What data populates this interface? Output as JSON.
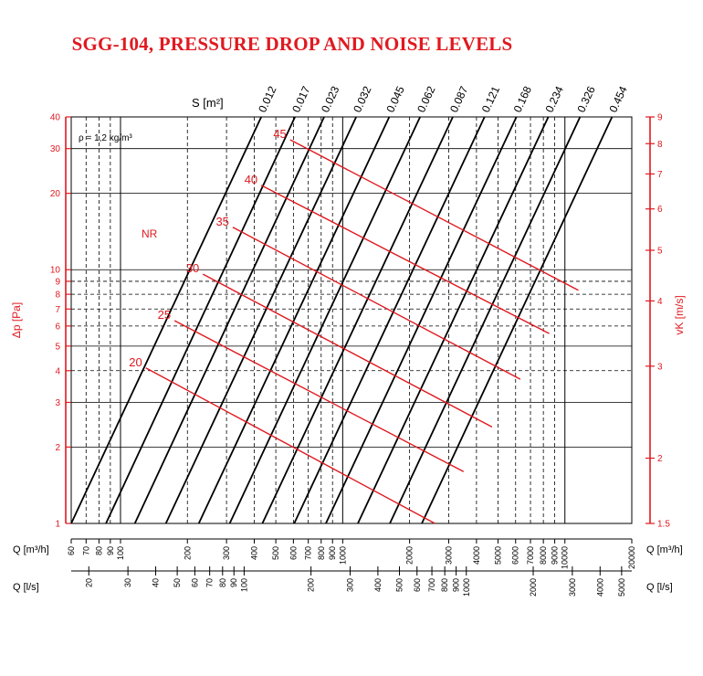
{
  "title": "SGG-104, PRESSURE DROP AND NOISE LEVELS",
  "chart_data": {
    "type": "line",
    "title": "SGG-104, PRESSURE DROP AND NOISE LEVELS",
    "density_note": "ρ = 1,2 kg/m³",
    "s_axis_label": "S [m²]",
    "left_axis": {
      "label": "Δp [Pa]",
      "scale": "log",
      "range": [
        1,
        40
      ],
      "ticks": [
        1,
        2,
        3,
        4,
        5,
        6,
        7,
        8,
        9,
        10,
        20,
        30,
        40
      ]
    },
    "right_axis": {
      "label": "vK [m/s]",
      "scale": "log",
      "range": [
        1.5,
        9
      ],
      "ticks": [
        "1.5",
        "2",
        "3",
        "4",
        "5",
        "6",
        "7",
        "8",
        "9"
      ]
    },
    "bottom_axis_m3h": {
      "label_left": "Q [m³/h]",
      "label_right": "Q [m³/h]",
      "scale": "log",
      "range": [
        60,
        20000
      ],
      "ticks": [
        "60",
        "70",
        "80",
        "90",
        "100",
        "200",
        "300",
        "400",
        "500",
        "600",
        "700",
        "800",
        "900",
        "1000",
        "2000",
        "3000",
        "4000",
        "5000",
        "6000",
        "7000",
        "8000",
        "9000",
        "10000",
        "20000"
      ]
    },
    "bottom_axis_ls": {
      "label_left": "Q [l/s]",
      "label_right": "Q [l/s]",
      "scale": "log",
      "ticks": [
        "20",
        "30",
        "40",
        "50",
        "60",
        "70",
        "80",
        "90",
        "100",
        "200",
        "300",
        "400",
        "500",
        "600",
        "700",
        "800",
        "900",
        "1000",
        "2000",
        "3000",
        "4000",
        "5000"
      ]
    },
    "series": [
      {
        "name": "0.012",
        "points": [
          [
            60,
            1
          ],
          [
            430,
            40
          ]
        ]
      },
      {
        "name": "0.017",
        "points": [
          [
            86,
            1
          ],
          [
            610,
            40
          ]
        ]
      },
      {
        "name": "0.023",
        "points": [
          [
            116,
            1
          ],
          [
            825,
            40
          ]
        ]
      },
      {
        "name": "0.032",
        "points": [
          [
            160,
            1
          ],
          [
            1150,
            40
          ]
        ]
      },
      {
        "name": "0.045",
        "points": [
          [
            225,
            1
          ],
          [
            1620,
            40
          ]
        ]
      },
      {
        "name": "0.062",
        "points": [
          [
            310,
            1
          ],
          [
            2230,
            40
          ]
        ]
      },
      {
        "name": "0.087",
        "points": [
          [
            435,
            1
          ],
          [
            3130,
            40
          ]
        ]
      },
      {
        "name": "0.121",
        "points": [
          [
            605,
            1
          ],
          [
            4350,
            40
          ]
        ]
      },
      {
        "name": "0.168",
        "points": [
          [
            840,
            1
          ],
          [
            6050,
            40
          ]
        ]
      },
      {
        "name": "0.234",
        "points": [
          [
            1170,
            1
          ],
          [
            8420,
            40
          ]
        ]
      },
      {
        "name": "0.326",
        "points": [
          [
            1630,
            1
          ],
          [
            11700,
            40
          ]
        ]
      },
      {
        "name": "0.454",
        "points": [
          [
            2270,
            1
          ],
          [
            16300,
            40
          ]
        ]
      }
    ],
    "nr_label": "NR",
    "nr_lines": [
      {
        "name": "20",
        "points": [
          [
            130,
            4.1
          ],
          [
            2600,
            1.0
          ]
        ]
      },
      {
        "name": "25",
        "points": [
          [
            175,
            6.3
          ],
          [
            3500,
            1.6
          ]
        ]
      },
      {
        "name": "30",
        "points": [
          [
            235,
            9.6
          ],
          [
            4700,
            2.4
          ]
        ]
      },
      {
        "name": "35",
        "points": [
          [
            320,
            14.7
          ],
          [
            6300,
            3.7
          ]
        ]
      },
      {
        "name": "40",
        "points": [
          [
            430,
            21.5
          ],
          [
            8500,
            5.6
          ]
        ]
      },
      {
        "name": "45",
        "points": [
          [
            580,
            32.5
          ],
          [
            11500,
            8.3
          ]
        ]
      }
    ],
    "colors": {
      "nr": "#e0191f",
      "axis_red": "#e0191f",
      "grid": "#000000",
      "title": "#e0191f"
    }
  }
}
